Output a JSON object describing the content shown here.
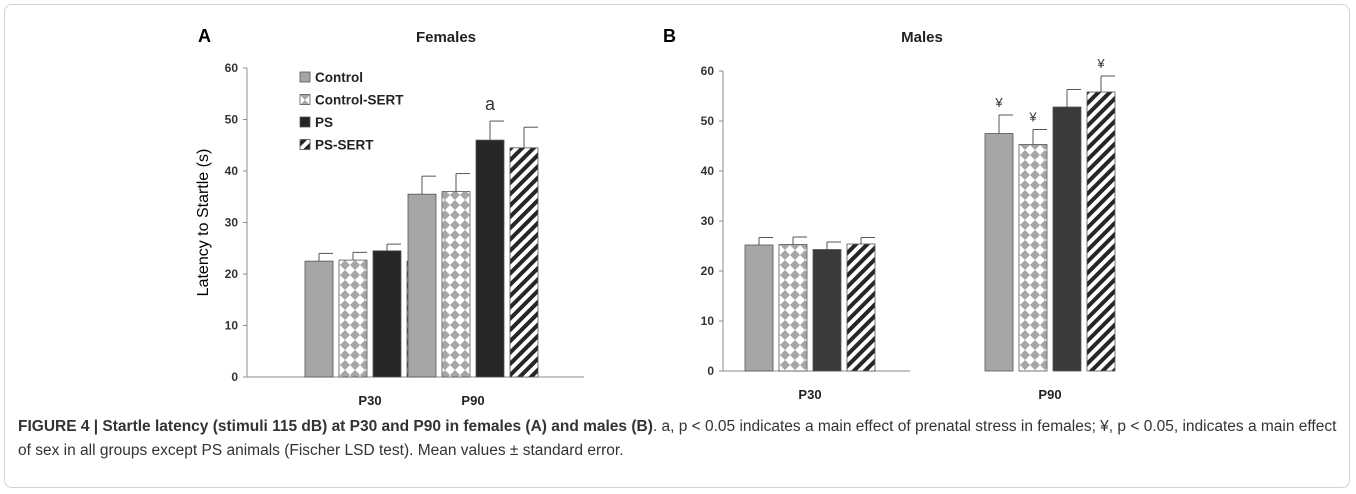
{
  "chart_data": [
    {
      "type": "bar",
      "panel_label": "A",
      "title": "Females",
      "ylabel": "Latency to Startle (s)",
      "ylim": [
        0,
        60
      ],
      "yticks": [
        0,
        10,
        20,
        30,
        40,
        50,
        60
      ],
      "categories": [
        "P30",
        "P90"
      ],
      "legend_position": "top-left",
      "series": [
        {
          "name": "Control",
          "values": [
            22.5,
            35.5
          ],
          "errors": [
            1.5,
            3.5
          ],
          "fill": "solid-gray",
          "color": "#a6a6a6"
        },
        {
          "name": "Control-SERT",
          "values": [
            22.7,
            36.0
          ],
          "errors": [
            1.5,
            3.5
          ],
          "fill": "checker",
          "color": "#a6a6a6"
        },
        {
          "name": "PS",
          "values": [
            24.5,
            46.0
          ],
          "errors": [
            1.3,
            3.7
          ],
          "fill": "solid-black",
          "color": "#262626"
        },
        {
          "name": "PS-SERT",
          "values": [
            22.5,
            44.5
          ],
          "errors": [
            1.5,
            4.0
          ],
          "fill": "diagonal",
          "color": "#262626"
        }
      ],
      "annotations": [
        {
          "text": "a",
          "category": "P90",
          "y": 53
        }
      ]
    },
    {
      "type": "bar",
      "panel_label": "B",
      "title": "Males",
      "ylabel": "",
      "ylim": [
        0,
        60
      ],
      "yticks": [
        0,
        10,
        20,
        30,
        40,
        50,
        60
      ],
      "categories": [
        "P30",
        "P90"
      ],
      "series": [
        {
          "name": "Control",
          "values": [
            25.2,
            47.5
          ],
          "errors": [
            1.5,
            3.7
          ],
          "fill": "solid-gray",
          "color": "#a6a6a6"
        },
        {
          "name": "Control-SERT",
          "values": [
            25.3,
            45.3
          ],
          "errors": [
            1.5,
            3.0
          ],
          "fill": "checker",
          "color": "#a6a6a6"
        },
        {
          "name": "PS",
          "values": [
            24.3,
            52.8
          ],
          "errors": [
            1.5,
            3.5
          ],
          "fill": "solid-dark",
          "color": "#3a3a3a"
        },
        {
          "name": "PS-SERT",
          "values": [
            25.4,
            55.8
          ],
          "errors": [
            1.3,
            3.2
          ],
          "fill": "diagonal",
          "color": "#262626"
        }
      ],
      "markers": [
        {
          "text": "¥",
          "category": "P90",
          "series": 0
        },
        {
          "text": "¥",
          "category": "P90",
          "series": 1
        },
        {
          "text": "¥",
          "category": "P90",
          "series": 3
        }
      ]
    }
  ],
  "caption": {
    "bold": "FIGURE 4 | Startle latency (stimuli 115 dB) at P30 and P90 in females (A) and males (B)",
    "rest": ". a, p < 0.05 indicates a main effect of prenatal stress in females; ¥, p < 0.05, indicates a main effect of sex in all groups except PS animals (Fischer LSD test). Mean values ± standard error."
  }
}
